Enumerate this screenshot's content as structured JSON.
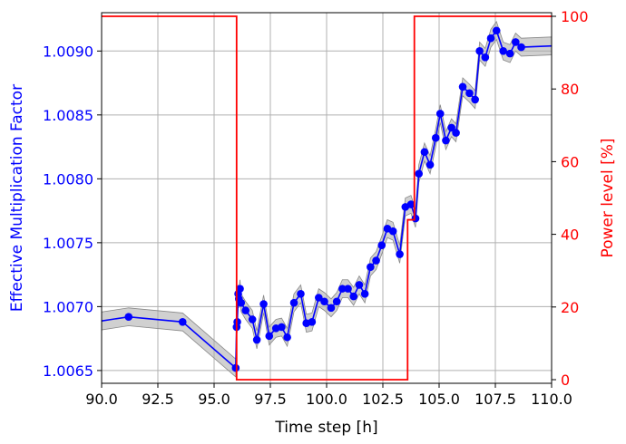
{
  "chart_data": {
    "type": "line",
    "xlabel": "Time step [h]",
    "ylabel_left": "Effective Multiplication Factor",
    "ylabel_right": "Power level [%]",
    "xlim": [
      90.0,
      110.0
    ],
    "ylim_left": [
      1.0064,
      1.0093
    ],
    "ylim_right": [
      -1,
      101
    ],
    "grid": true,
    "x_ticks": [
      90.0,
      92.5,
      95.0,
      97.5,
      100.0,
      102.5,
      105.0,
      107.5,
      110.0
    ],
    "x_tick_labels": [
      "90.0",
      "92.5",
      "95.0",
      "97.5",
      "100.0",
      "102.5",
      "105.0",
      "107.5",
      "110.0"
    ],
    "y_left_ticks": [
      1.0065,
      1.007,
      1.0075,
      1.008,
      1.0085,
      1.009
    ],
    "y_left_tick_labels": [
      "1.0065",
      "1.0070",
      "1.0075",
      "1.0080",
      "1.0085",
      "1.0090"
    ],
    "y_right_ticks": [
      0,
      20,
      40,
      60,
      80,
      100
    ],
    "y_right_tick_labels": [
      "0",
      "20",
      "40",
      "60",
      "80",
      "100"
    ],
    "colors": {
      "keff": "#0000ff",
      "power": "#ff0000",
      "band": "#aaaaaa",
      "grid": "#b0b0b0"
    },
    "keff": {
      "x": [
        86.7,
        91.2,
        93.6,
        95.96,
        96.0,
        96.03,
        96.07,
        96.1,
        96.15,
        96.2,
        96.4,
        96.7,
        96.9,
        97.2,
        97.45,
        97.75,
        98.0,
        98.25,
        98.55,
        98.85,
        99.1,
        99.35,
        99.65,
        99.9,
        100.2,
        100.45,
        100.7,
        100.95,
        101.2,
        101.45,
        101.7,
        101.95,
        102.2,
        102.45,
        102.7,
        102.95,
        103.25,
        103.5,
        103.75,
        103.95,
        104.1,
        104.35,
        104.6,
        104.85,
        105.05,
        105.3,
        105.55,
        105.75,
        106.05,
        106.35,
        106.6,
        106.8,
        107.05,
        107.3,
        107.55,
        107.85,
        108.15,
        108.4,
        108.65,
        110.0
      ],
      "y": [
        1.0068,
        1.00692,
        1.00688,
        1.00652,
        1.00684,
        1.00688,
        1.0071,
        1.00706,
        1.00714,
        1.00703,
        1.00697,
        1.0069,
        1.00674,
        1.00702,
        1.00677,
        1.00683,
        1.00684,
        1.00676,
        1.00703,
        1.0071,
        1.00687,
        1.00688,
        1.00707,
        1.00704,
        1.00699,
        1.00704,
        1.00714,
        1.00714,
        1.00708,
        1.00717,
        1.0071,
        1.00731,
        1.00736,
        1.00748,
        1.00761,
        1.00759,
        1.00741,
        1.00778,
        1.0078,
        1.00769,
        1.00804,
        1.00821,
        1.00811,
        1.00832,
        1.00851,
        1.0083,
        1.0084,
        1.00836,
        1.00872,
        1.00867,
        1.00862,
        1.009,
        1.00895,
        1.0091,
        1.00916,
        1.009,
        1.00898,
        1.00907,
        1.00903,
        1.00904
      ],
      "marker_from_index": 1,
      "band_halfwidth": 7e-05
    },
    "power": {
      "x": [
        90.0,
        96.0,
        96.0,
        103.6,
        103.6,
        103.9,
        103.9,
        110.0
      ],
      "y": [
        100,
        100,
        0,
        0,
        44,
        44,
        100,
        100
      ]
    }
  }
}
